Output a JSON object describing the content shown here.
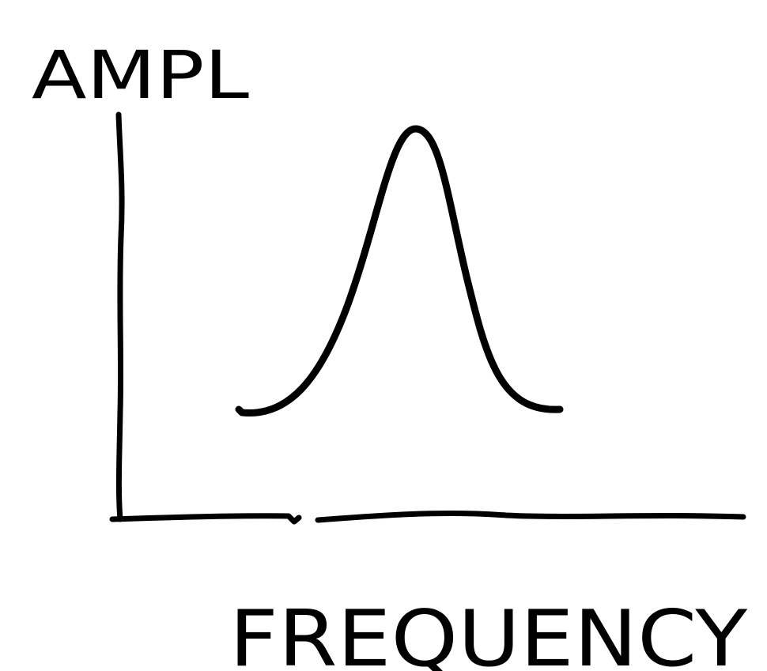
{
  "y_axis_label": "AMPL",
  "x_axis_label": "FREQUENCY"
}
